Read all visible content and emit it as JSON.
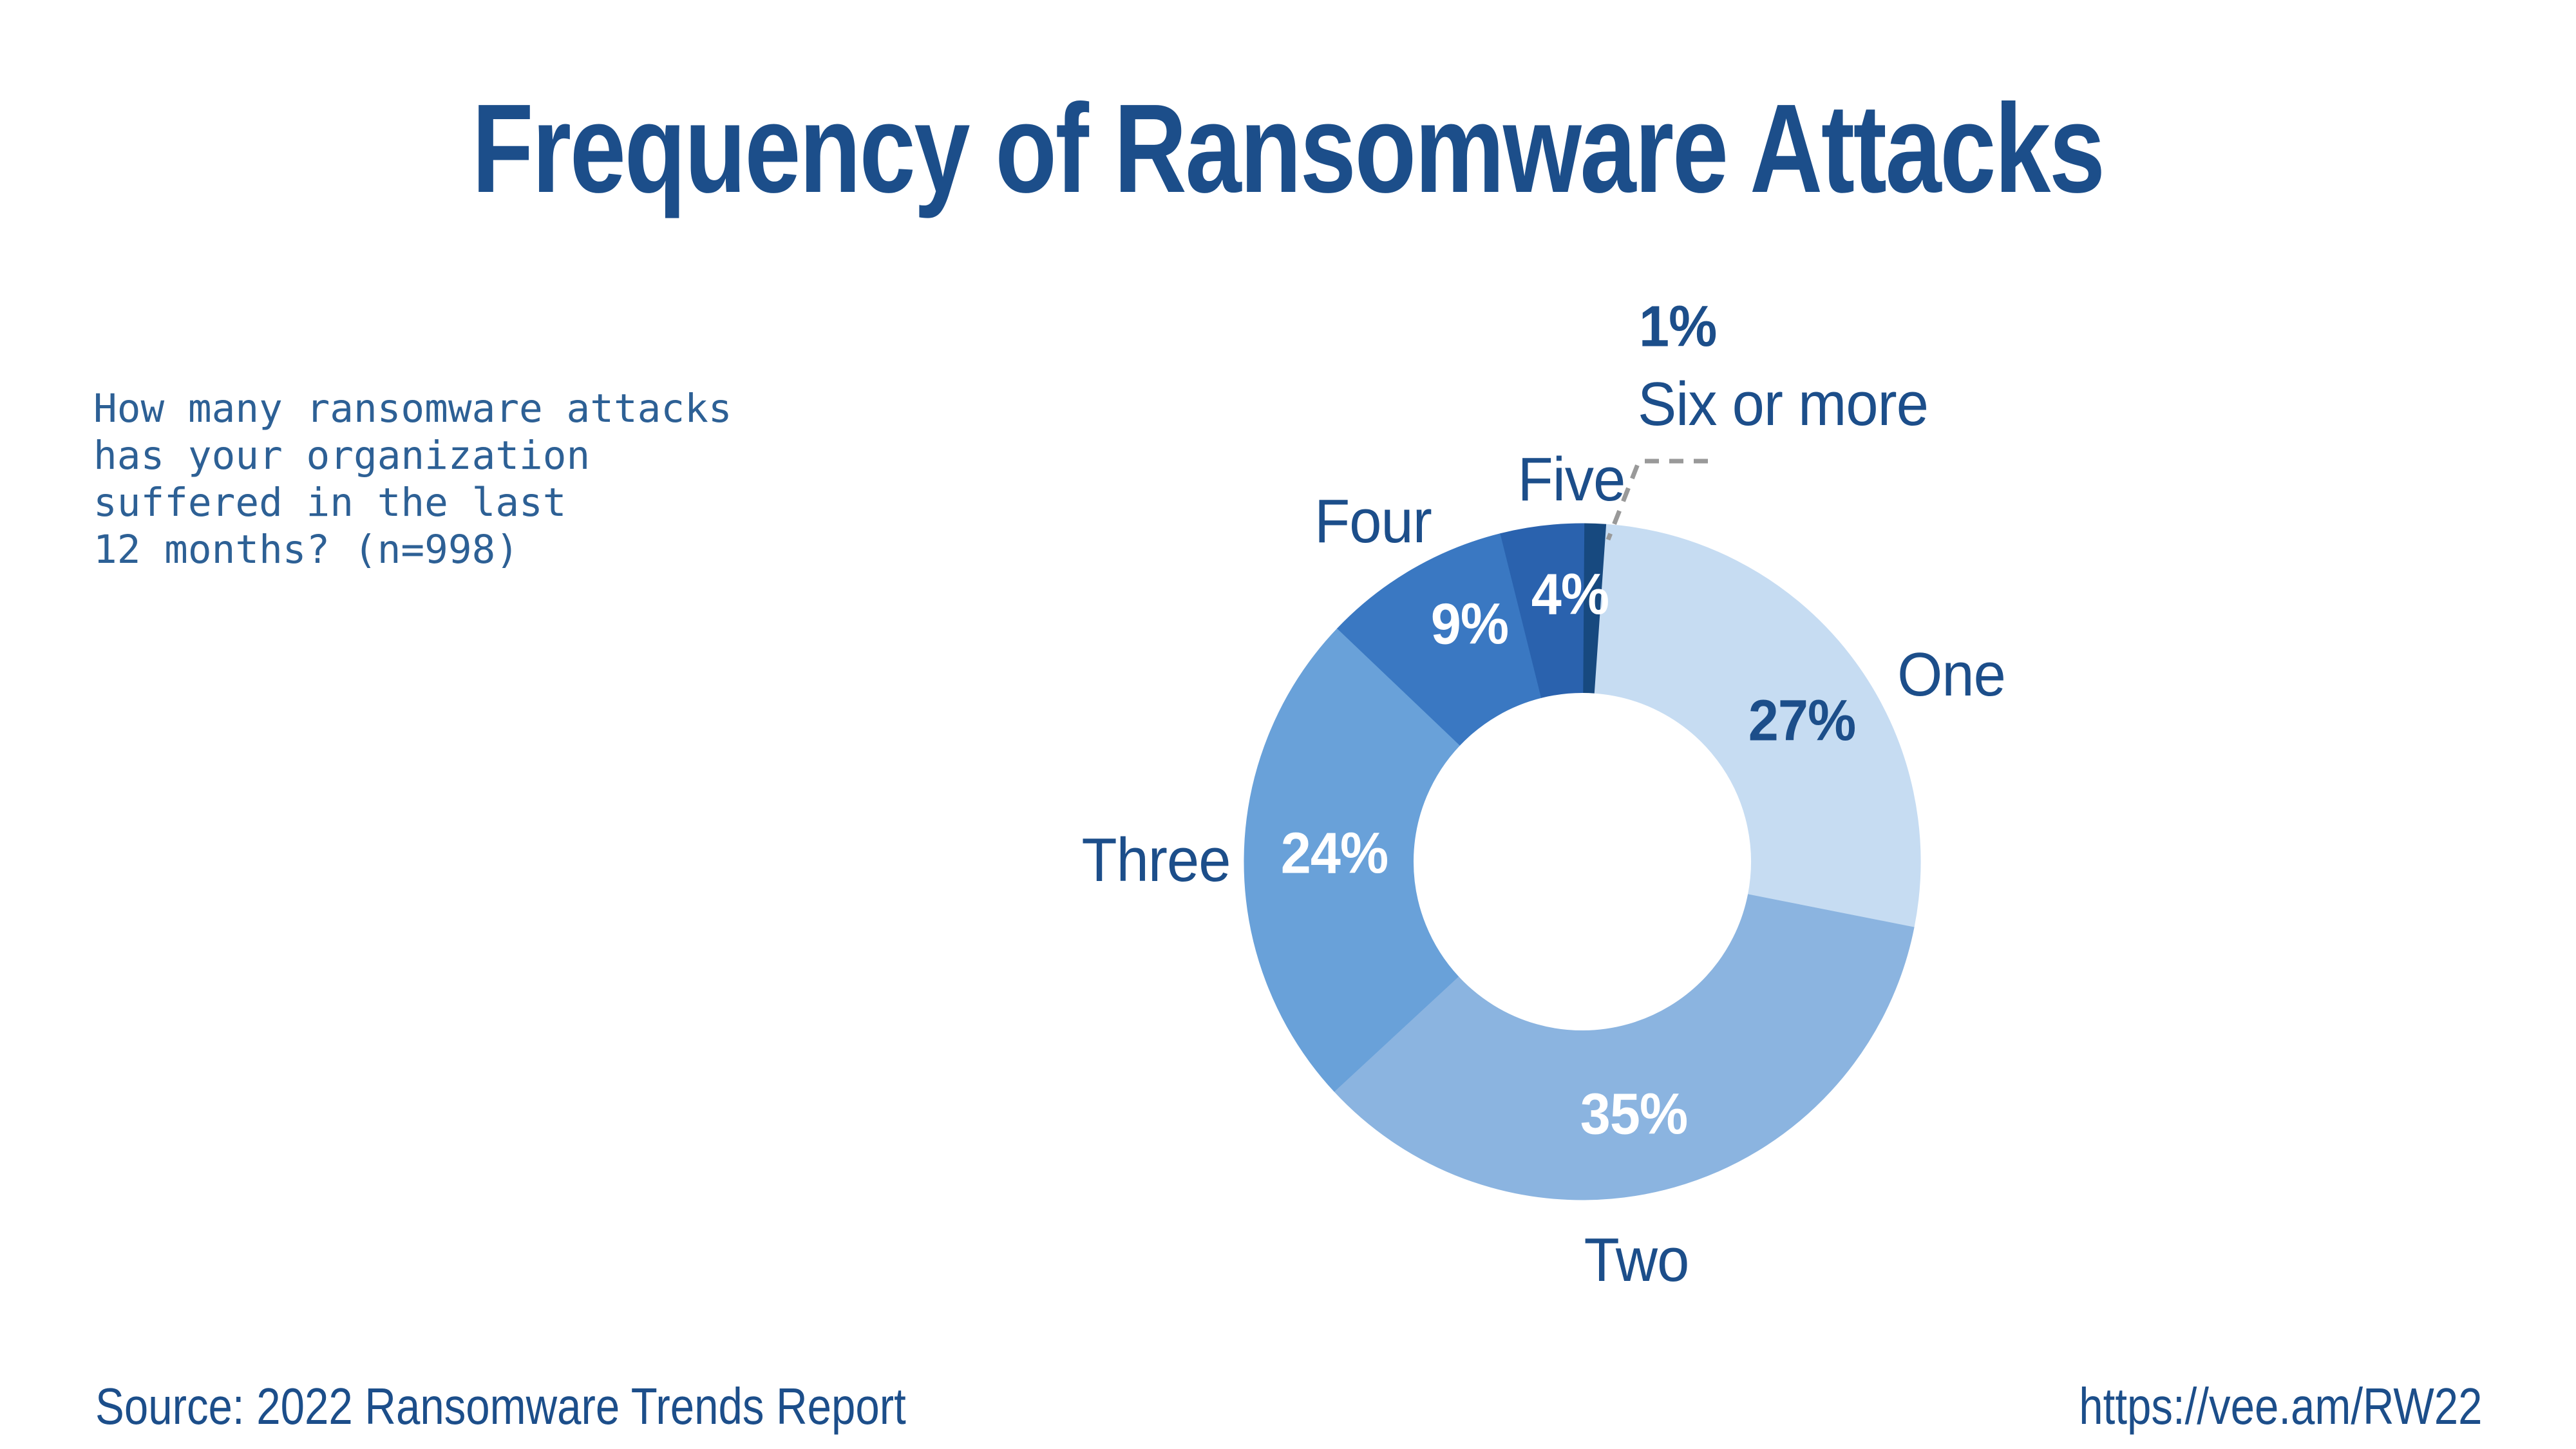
{
  "title": "Frequency of Ransomware Attacks",
  "question": "How many ransomware attacks\nhas your organization\nsuffered in the last\n12 months? (n=998)",
  "footer": {
    "source": "Source: 2022 Ransomware Trends Report",
    "url": "https://vee.am/RW22"
  },
  "colors": {
    "heading_text": "#1c4e8a",
    "question_text": "#2d6095",
    "leader_line": "#999999",
    "background": "#ffffff",
    "label_on_slice": "#ffffff"
  },
  "chart_data": {
    "type": "pie",
    "variant": "donut",
    "title": "Frequency of Ransomware Attacks",
    "sample_size_note": "(n=998)",
    "categories": [
      "One",
      "Two",
      "Three",
      "Four",
      "Five",
      "Six or more"
    ],
    "values": [
      27,
      35,
      24,
      9,
      4,
      1
    ],
    "display_values": [
      "27%",
      "35%",
      "24%",
      "9%",
      "4%",
      "1%"
    ],
    "slice_colors": [
      "#c6dcf2",
      "#8bb4e0",
      "#69a1d9",
      "#3a78c2",
      "#2a62ae",
      "#17497f"
    ],
    "start_angle_deg": 4,
    "direction": "clockwise",
    "inner_radius_ratio": 0.5,
    "legend_position": "around-slices"
  }
}
